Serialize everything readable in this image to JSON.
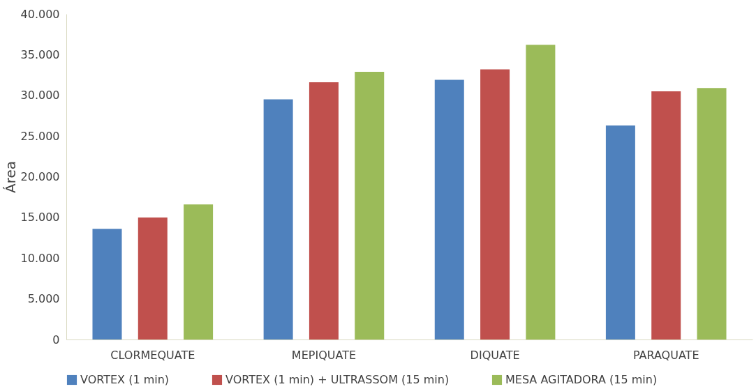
{
  "chart_data": {
    "type": "bar",
    "ylabel": "Área",
    "categories": [
      "CLORMEQUATE",
      "MEPIQUATE",
      "DIQUATE",
      "PARAQUATE"
    ],
    "series": [
      {
        "name": "VORTEX (1 min)",
        "color": "#4f81bd",
        "values": [
          13600,
          29500,
          31900,
          26300
        ]
      },
      {
        "name": "VORTEX (1 min) + ULTRASSOM (15 min)",
        "color": "#c0504d",
        "values": [
          15000,
          31600,
          33200,
          30500
        ]
      },
      {
        "name": "MESA AGITADORA (15 min)",
        "color": "#9bbb59",
        "values": [
          16600,
          32900,
          36200,
          30900
        ]
      }
    ],
    "ylim": [
      0,
      40000
    ],
    "yticks": [
      {
        "value": 0,
        "label": "0"
      },
      {
        "value": 5000,
        "label": "5.000"
      },
      {
        "value": 10000,
        "label": "10.000"
      },
      {
        "value": 15000,
        "label": "15.000"
      },
      {
        "value": 20000,
        "label": "20.000"
      },
      {
        "value": 25000,
        "label": "25.000"
      },
      {
        "value": 30000,
        "label": "30.000"
      },
      {
        "value": 35000,
        "label": "35.000"
      },
      {
        "value": 40000,
        "label": "40.000"
      }
    ],
    "grid": false,
    "legend": "bottom"
  }
}
